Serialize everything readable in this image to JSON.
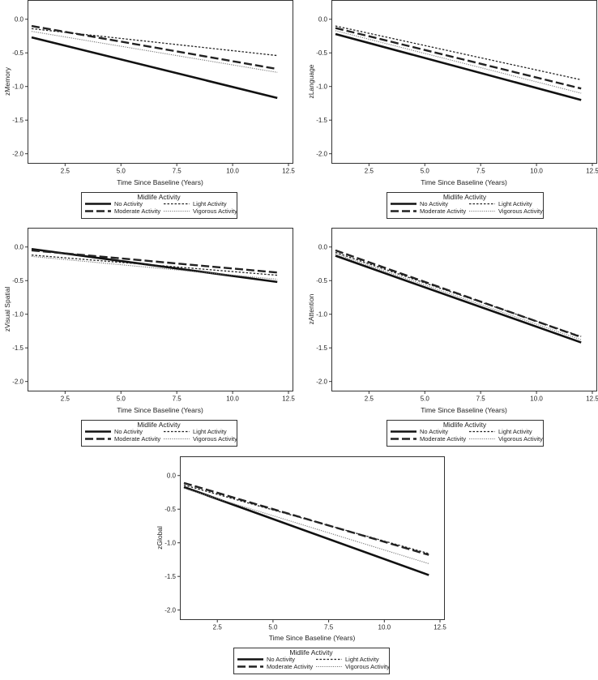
{
  "chart_data": [
    {
      "type": "line",
      "ylabel": "zMemory",
      "xlabel": "Time Since Baseline (Years)",
      "xlim": [
        1,
        12.5
      ],
      "ylim": [
        -2.1,
        0.25
      ],
      "x_ticks": [
        "2.5",
        "5.0",
        "7.5",
        "10.0",
        "12.5"
      ],
      "x_tick_values": [
        2.5,
        5.0,
        7.5,
        10.0,
        12.5
      ],
      "y_ticks": [
        "0.0",
        "-0.5",
        "-1.0",
        "-1.5",
        "-2.0"
      ],
      "y_tick_values": [
        0,
        -0.5,
        -1.0,
        -1.5,
        -2.0
      ],
      "x": [
        1,
        12
      ],
      "series": [
        {
          "name": "No Activity",
          "values": [
            -0.27,
            -1.17
          ]
        },
        {
          "name": "Light Activity",
          "values": [
            -0.14,
            -0.54
          ]
        },
        {
          "name": "Moderate Activity",
          "values": [
            -0.1,
            -0.74
          ]
        },
        {
          "name": "Vigorous Activity",
          "values": [
            -0.18,
            -0.79
          ]
        }
      ],
      "legend": {
        "title": "Midlife Activity",
        "placement": "bottom"
      }
    },
    {
      "type": "line",
      "ylabel": "zLanguage",
      "xlabel": "Time Since Baseline (Years)",
      "xlim": [
        1,
        12.5
      ],
      "ylim": [
        -2.1,
        0.25
      ],
      "x_ticks": [
        "2.5",
        "5.0",
        "7.5",
        "10.0",
        "12.5"
      ],
      "x_tick_values": [
        2.5,
        5.0,
        7.5,
        10.0,
        12.5
      ],
      "y_ticks": [
        "0.0",
        "-0.5",
        "-1.0",
        "-1.5",
        "-2.0"
      ],
      "y_tick_values": [
        0,
        -0.5,
        -1.0,
        -1.5,
        -2.0
      ],
      "x": [
        1,
        12
      ],
      "series": [
        {
          "name": "No Activity",
          "values": [
            -0.22,
            -1.2
          ]
        },
        {
          "name": "Light Activity",
          "values": [
            -0.1,
            -0.9
          ]
        },
        {
          "name": "Moderate Activity",
          "values": [
            -0.13,
            -1.03
          ]
        },
        {
          "name": "Vigorous Activity",
          "values": [
            -0.17,
            -1.1
          ]
        }
      ],
      "legend": {
        "title": "Midlife Activity",
        "placement": "bottom"
      }
    },
    {
      "type": "line",
      "ylabel": "zVisual Spatial",
      "xlabel": "Time Since Baseline (Years)",
      "xlim": [
        1,
        12.5
      ],
      "ylim": [
        -2.1,
        0.25
      ],
      "x_ticks": [
        "2.5",
        "5.0",
        "7.5",
        "10.0",
        "12.5"
      ],
      "x_tick_values": [
        2.5,
        5.0,
        7.5,
        10.0,
        12.5
      ],
      "y_ticks": [
        "0.0",
        "-0.5",
        "-1.0",
        "-1.5",
        "-2.0"
      ],
      "y_tick_values": [
        0,
        -0.5,
        -1.0,
        -1.5,
        -2.0
      ],
      "x": [
        1,
        12
      ],
      "series": [
        {
          "name": "No Activity",
          "values": [
            -0.03,
            -0.52
          ]
        },
        {
          "name": "Light Activity",
          "values": [
            -0.12,
            -0.42
          ]
        },
        {
          "name": "Moderate Activity",
          "values": [
            -0.05,
            -0.38
          ]
        },
        {
          "name": "Vigorous Activity",
          "values": [
            -0.14,
            -0.48
          ]
        }
      ],
      "legend": {
        "title": "Midlife Activity",
        "placement": "bottom"
      }
    },
    {
      "type": "line",
      "ylabel": "zAttention",
      "xlabel": "Time Since Baseline (Years)",
      "xlim": [
        1,
        12.5
      ],
      "ylim": [
        -2.1,
        0.25
      ],
      "x_ticks": [
        "2.5",
        "5.0",
        "7.5",
        "10.0",
        "12.5"
      ],
      "x_tick_values": [
        2.5,
        5.0,
        7.5,
        10.0,
        12.5
      ],
      "y_ticks": [
        "0.0",
        "-0.5",
        "-1.0",
        "-1.5",
        "-2.0"
      ],
      "y_tick_values": [
        0,
        -0.5,
        -1.0,
        -1.5,
        -2.0
      ],
      "x": [
        1,
        12
      ],
      "series": [
        {
          "name": "No Activity",
          "values": [
            -0.13,
            -1.42
          ]
        },
        {
          "name": "Light Activity",
          "values": [
            -0.08,
            -1.33
          ]
        },
        {
          "name": "Moderate Activity",
          "values": [
            -0.05,
            -1.34
          ]
        },
        {
          "name": "Vigorous Activity",
          "values": [
            -0.1,
            -1.38
          ]
        }
      ],
      "legend": {
        "title": "Midlife Activity",
        "placement": "bottom"
      }
    },
    {
      "type": "line",
      "ylabel": "zGlobal",
      "xlabel": "Time Since Baseline (Years)",
      "xlim": [
        1,
        12.5
      ],
      "ylim": [
        -2.1,
        0.25
      ],
      "x_ticks": [
        "2.5",
        "5.0",
        "7.5",
        "10.0",
        "12.5"
      ],
      "x_tick_values": [
        2.5,
        5.0,
        7.5,
        10.0,
        12.5
      ],
      "y_ticks": [
        "0.0",
        "-0.5",
        "-1.0",
        "-1.5",
        "-2.0"
      ],
      "y_tick_values": [
        0,
        -0.5,
        -1.0,
        -1.5,
        -2.0
      ],
      "x": [
        1,
        12
      ],
      "series": [
        {
          "name": "No Activity",
          "values": [
            -0.17,
            -1.48
          ]
        },
        {
          "name": "Light Activity",
          "values": [
            -0.14,
            -1.16
          ]
        },
        {
          "name": "Moderate Activity",
          "values": [
            -0.11,
            -1.18
          ]
        },
        {
          "name": "Vigorous Activity",
          "values": [
            -0.19,
            -1.31
          ]
        }
      ],
      "legend": {
        "title": "Midlife Activity",
        "placement": "bottom"
      }
    }
  ]
}
